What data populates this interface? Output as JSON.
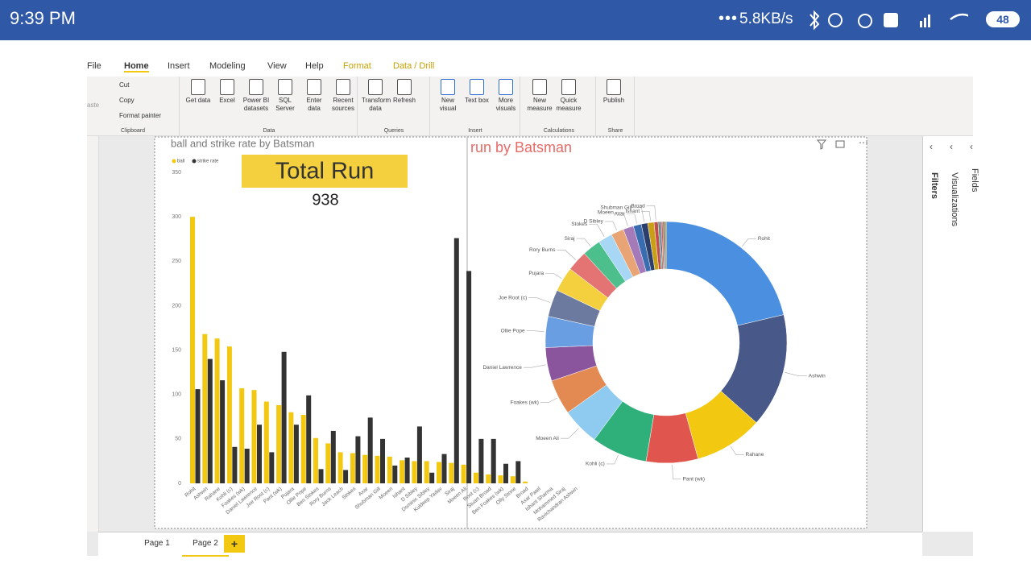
{
  "status_bar": {
    "time": "9:39 PM",
    "network_speed": "5.8KB/s",
    "battery": "48"
  },
  "ribbon": {
    "tabs": [
      "File",
      "Home",
      "Insert",
      "Modeling",
      "View",
      "Help",
      "Format",
      "Data / Drill"
    ],
    "groups": [
      {
        "name": "Clipboard",
        "buttons": [
          "aste",
          "Cut",
          "Copy",
          "Format painter"
        ]
      },
      {
        "name": "Data",
        "buttons": [
          "Get data",
          "Excel",
          "Power BI datasets",
          "SQL Server",
          "Enter data",
          "Recent sources"
        ]
      },
      {
        "name": "Queries",
        "buttons": [
          "Transform data",
          "Refresh"
        ]
      },
      {
        "name": "Insert",
        "buttons": [
          "New visual",
          "Text box",
          "More visuals"
        ]
      },
      {
        "name": "Calculations",
        "buttons": [
          "New measure",
          "Quick measure"
        ]
      },
      {
        "name": "Share",
        "buttons": [
          "Publish"
        ]
      }
    ]
  },
  "panes": [
    "Filters",
    "Visualizations",
    "Fields"
  ],
  "page_tabs": [
    "Page 1",
    "Page 2"
  ],
  "add_page": "+",
  "card": {
    "title": "Total Run",
    "value": 938
  },
  "chart_data": [
    {
      "type": "bar",
      "title": "ball and strike rate by Batsman",
      "categories": [
        "Rohit",
        "Ashwin",
        "Rahane",
        "Kohli (c)",
        "Foakes (wk)",
        "Daniel Lawrence",
        "Joe Root (c)",
        "Pant (wk)",
        "Pujara",
        "Ollie Pope",
        "Ben Stokes",
        "Rory Burns",
        "Jack Leach",
        "Stokes",
        "Axar",
        "Shubman Gill",
        "Moeen",
        "Ishant",
        "D Sibley",
        "Dominic Sibley",
        "Kuldeep Yadav",
        "Siraj",
        "Moeen Ali",
        "Root (c)",
        "Stuart Broad",
        "Ben Foakes (wk)",
        "Olly Stone",
        "Broad",
        "Axar Patel",
        "Ishant Sharma",
        "Mohammed Siraj",
        "Ravichandran Ashwin"
      ],
      "series": [
        {
          "name": "ball",
          "color": "#f2c811",
          "values": [
            300,
            168,
            163,
            154,
            107,
            105,
            92,
            88,
            80,
            77,
            51,
            45,
            35,
            34,
            32,
            31,
            30,
            26,
            25,
            25,
            24,
            23,
            21,
            12,
            10,
            9,
            8,
            2,
            0,
            0,
            0,
            0
          ]
        },
        {
          "name": "strike rate",
          "color": "#333333",
          "values": [
            106,
            140,
            116,
            41,
            39,
            66,
            35,
            148,
            66,
            99,
            16,
            59,
            15,
            53,
            74,
            50,
            20,
            29,
            64,
            12,
            33,
            276,
            239,
            50,
            50,
            22,
            25,
            0,
            0,
            0,
            0,
            0
          ]
        }
      ],
      "ylim": [
        0,
        350
      ],
      "yticks": [
        0,
        50,
        100,
        150,
        200,
        250,
        300,
        350
      ],
      "grid": false
    },
    {
      "type": "donut",
      "title": "run by Batsman",
      "categories": [
        "Rohit",
        "Ashwin",
        "Rahane",
        "Pant (wk)",
        "Kohli (c)",
        "Moeen Ali",
        "Foakes (wk)",
        "Daniel Lawrence",
        "Ollie Pope",
        "Joe Root (c)",
        "Pujara",
        "Rory Burns",
        "Siraj",
        "Stokes",
        "D Sibley",
        "Moeen",
        "Axar",
        "Shubman Gill",
        "Ishant",
        "Broad",
        null,
        null,
        null,
        null,
        null
      ],
      "values": [
        200,
        143,
        86,
        65,
        70,
        47,
        44,
        42,
        39,
        34,
        31,
        26,
        23,
        18,
        16,
        13,
        10,
        8,
        8,
        5,
        2,
        2,
        2,
        2,
        2
      ],
      "colors": [
        "#4a8fe0",
        "#485888",
        "#f2c811",
        "#e0564f",
        "#2fb07a",
        "#8fcaf0",
        "#e28a52",
        "#8a559c",
        "#6a9ee2",
        "#6c7aa0",
        "#f4d03f",
        "#e47474",
        "#4cbf8c",
        "#a8d6f5",
        "#e8a474",
        "#a57ab8",
        "#3a6db0",
        "#2c3e6b",
        "#c9a015",
        "#c44c4c",
        "#2a8a60",
        "#7a4a8a",
        "#d06b3a",
        "#555a70",
        "#b08a20"
      ]
    }
  ]
}
